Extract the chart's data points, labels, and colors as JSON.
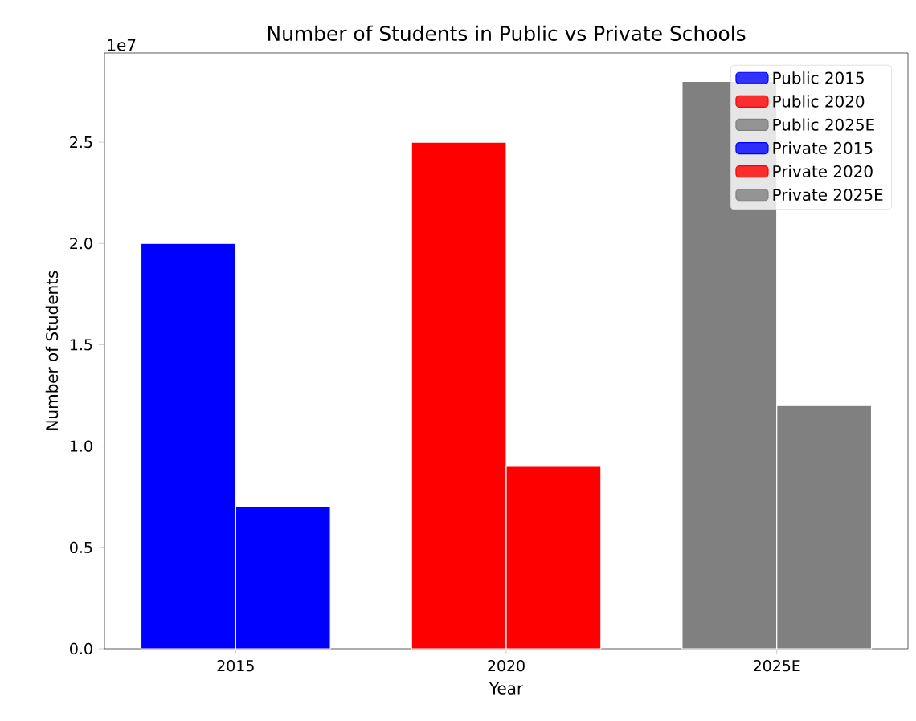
{
  "chart_data": {
    "type": "bar",
    "title": "Number of Students in Public vs Private Schools",
    "xlabel": "Year",
    "ylabel": "Number of Students",
    "categories": [
      "2015",
      "2020",
      "2025E"
    ],
    "series": [
      {
        "name": "Public 2015",
        "color": "#0000ff",
        "values": [
          2.0,
          null,
          null
        ]
      },
      {
        "name": "Public 2020",
        "color": "#ff0000",
        "values": [
          null,
          2.5,
          null
        ]
      },
      {
        "name": "Public 2025E",
        "color": "#808080",
        "values": [
          null,
          null,
          2.8
        ]
      },
      {
        "name": "Private 2015",
        "color": "#0000ff",
        "values": [
          0.7,
          null,
          null
        ]
      },
      {
        "name": "Private 2020",
        "color": "#ff0000",
        "values": [
          null,
          0.9,
          null
        ]
      },
      {
        "name": "Private 2025E",
        "color": "#808080",
        "values": [
          null,
          null,
          1.2
        ]
      }
    ],
    "ylim": [
      0,
      2.94
    ],
    "yticks": [
      {
        "value": 0,
        "label": "0.0"
      },
      {
        "value": 0.5,
        "label": "0.5"
      },
      {
        "value": 1,
        "label": "1.0"
      },
      {
        "value": 1.5,
        "label": "1.5"
      },
      {
        "value": 2,
        "label": "2.0"
      },
      {
        "value": 2.5,
        "label": "2.5"
      }
    ],
    "annotations": [
      "1e7"
    ],
    "legend": "top right"
  }
}
